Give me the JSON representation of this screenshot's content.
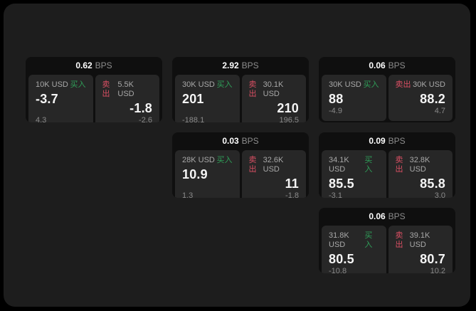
{
  "labels": {
    "bps_unit": "BPS",
    "buy": "买入",
    "sell": "卖出"
  },
  "colors": {
    "page_bg": "#000000",
    "window_bg": "#1d1d1d",
    "card_bg": "#0f0f0f",
    "panel_bg": "#272727",
    "buy_green": "#2f9e58",
    "sell_red": "#d94f63"
  },
  "cards": [
    {
      "bps": "0.62",
      "buy": {
        "amount": "10K USD",
        "value": "-3.7",
        "sub": "4.3"
      },
      "sell": {
        "amount": "5.5K USD",
        "value": "-1.8",
        "sub": "-2.6"
      }
    },
    {
      "bps": "2.92",
      "buy": {
        "amount": "30K USD",
        "value": "201",
        "sub": "-188.1"
      },
      "sell": {
        "amount": "30.1K USD",
        "value": "210",
        "sub": "196.5"
      }
    },
    {
      "bps": "0.06",
      "buy": {
        "amount": "30K USD",
        "value": "88",
        "sub": "-4.9"
      },
      "sell": {
        "amount": "30K USD",
        "value": "88.2",
        "sub": "4.7"
      }
    },
    {
      "bps": "0.03",
      "buy": {
        "amount": "28K USD",
        "value": "10.9",
        "sub": "1.3"
      },
      "sell": {
        "amount": "32.6K USD",
        "value": "11",
        "sub": "-1.8"
      }
    },
    {
      "bps": "0.09",
      "buy": {
        "amount": "34.1K USD",
        "value": "85.5",
        "sub": "-3.1"
      },
      "sell": {
        "amount": "32.8K USD",
        "value": "85.8",
        "sub": "3.0"
      }
    },
    {
      "bps": "0.06",
      "buy": {
        "amount": "31.8K USD",
        "value": "80.5",
        "sub": "-10.8"
      },
      "sell": {
        "amount": "39.1K USD",
        "value": "80.7",
        "sub": "10.2"
      }
    }
  ]
}
